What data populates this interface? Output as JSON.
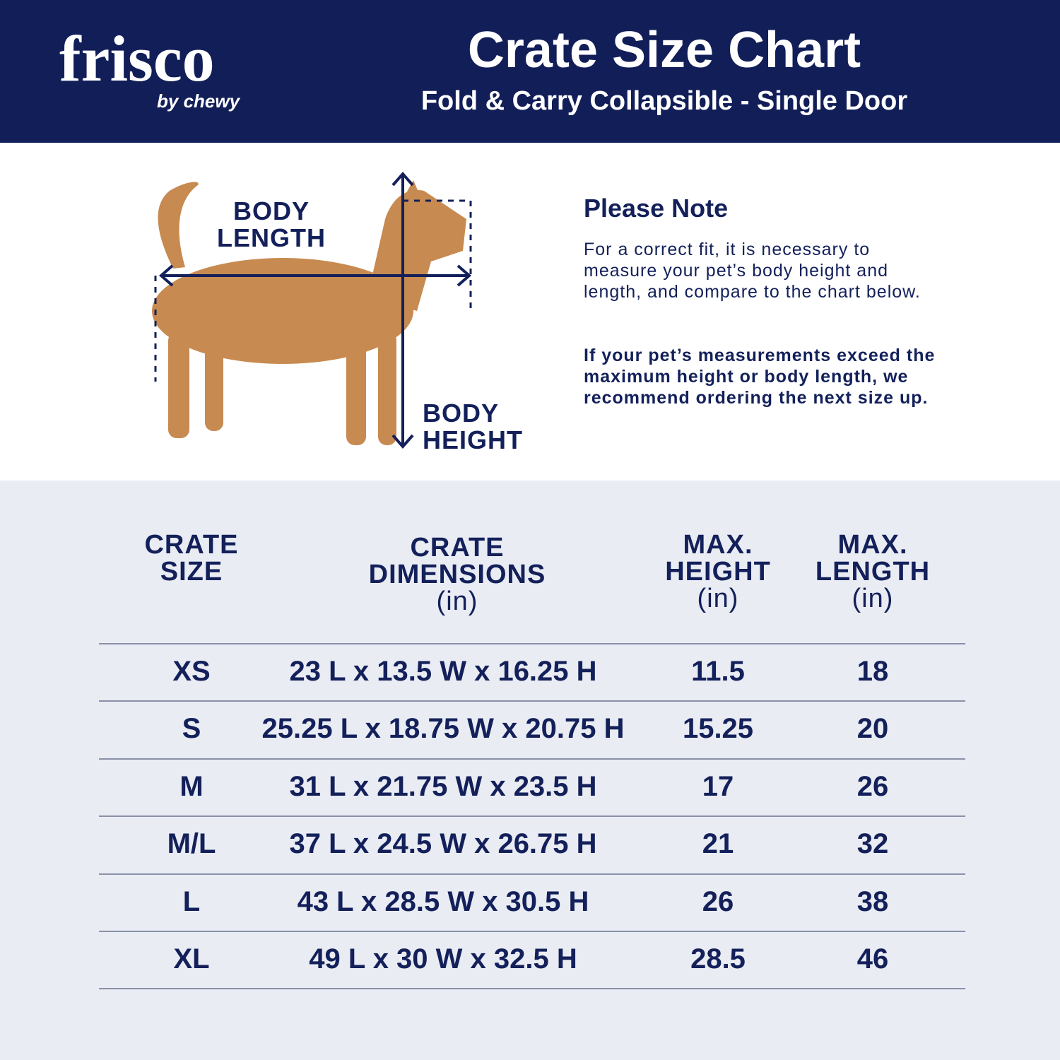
{
  "header": {
    "logo": "frisco",
    "logo_sub": "by chewy",
    "title": "Crate Size Chart",
    "subtitle": "Fold & Carry Collapsible - Single Door"
  },
  "diagram": {
    "length_label": [
      "BODY",
      "LENGTH"
    ],
    "height_label": [
      "BODY",
      "HEIGHT"
    ]
  },
  "note": {
    "title": "Please Note",
    "paragraphs": [
      "For a correct fit, it is necessary to measure your pet’s body height and length, and compare to the chart below.",
      "If your pet’s measurements exceed the maximum height or body length, we recommend ordering the next size up."
    ]
  },
  "table": {
    "headers": [
      [
        "CRATE",
        "SIZE"
      ],
      [
        "CRATE",
        "DIMENSIONS",
        "(in)"
      ],
      [
        "MAX.",
        "HEIGHT",
        "(in)"
      ],
      [
        "MAX.",
        "LENGTH",
        "(in)"
      ]
    ],
    "rows": [
      [
        "XS",
        "23 L x 13.5 W x 16.25 H",
        "11.5",
        "18"
      ],
      [
        "S",
        "25.25 L x 18.75 W x 20.75 H",
        "15.25",
        "20"
      ],
      [
        "M",
        "31 L x 21.75 W x 23.5 H",
        "17",
        "26"
      ],
      [
        "M/L",
        "37 L x 24.5 W x 26.75 H",
        "21",
        "32"
      ],
      [
        "L",
        "43 L x 28.5 W x 30.5 H",
        "26",
        "38"
      ],
      [
        "XL",
        "49 L x 30 W x 32.5 H",
        "28.5",
        "46"
      ]
    ]
  }
}
